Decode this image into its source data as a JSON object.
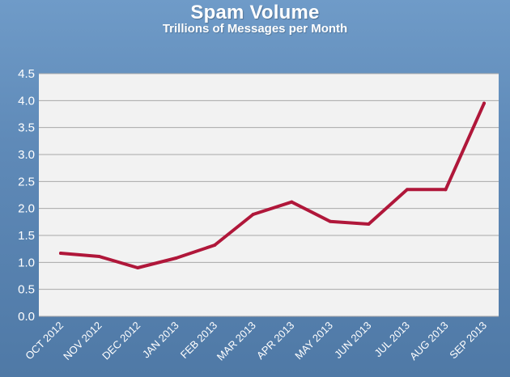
{
  "chart_data": {
    "type": "line",
    "title": "Spam Volume",
    "subtitle": "Trillions of Messages per Month",
    "xlabel": "",
    "ylabel": "",
    "categories": [
      "OCT 2012",
      "NOV 2012",
      "DEC 2012",
      "JAN 2013",
      "FEB 2013",
      "MAR 2013",
      "APR 2013",
      "MAY 2013",
      "JUN 2013",
      "JUL 2013",
      "AUG 2013",
      "SEP 2013"
    ],
    "series": [
      {
        "color": "#b0173a",
        "values": [
          1.17,
          1.11,
          0.9,
          1.08,
          1.32,
          1.89,
          2.12,
          1.76,
          1.71,
          2.35,
          2.35,
          3.95
        ]
      }
    ],
    "ylim": [
      0,
      4.5
    ],
    "yticks": [
      0.0,
      0.5,
      1.0,
      1.5,
      2.0,
      2.5,
      3.0,
      3.5,
      4.0,
      4.5
    ],
    "ytick_labels": [
      "0.0",
      "0.5",
      "1.0",
      "1.5",
      "2.0",
      "2.5",
      "3.0",
      "3.5",
      "4.0",
      "4.5"
    ],
    "grid": true,
    "legend": "none"
  },
  "colors": {
    "background_top": "#6f9bc8",
    "background_bottom": "#4f79a6",
    "plot_background": "#f2f2f2",
    "gridline": "#a8a8a8",
    "text": "#ffffff",
    "line": "#b0173a"
  }
}
